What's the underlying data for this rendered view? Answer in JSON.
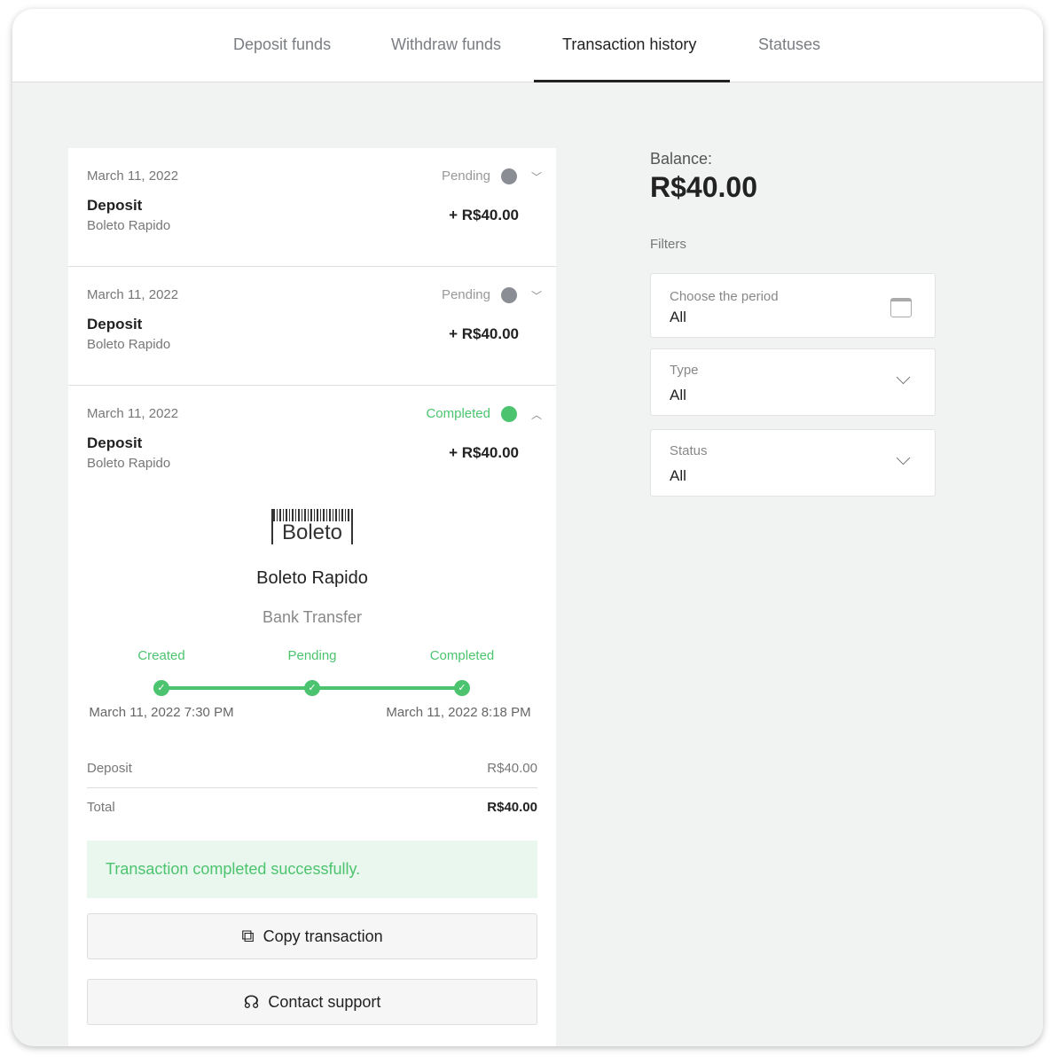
{
  "tabs": [
    {
      "label": "Deposit funds"
    },
    {
      "label": "Withdraw funds"
    },
    {
      "label": "Transaction history"
    },
    {
      "label": "Statuses"
    }
  ],
  "transactions": [
    {
      "date": "March 11, 2022",
      "status": "Pending",
      "type": "Deposit",
      "method": "Boleto Rapido",
      "amount": "+ R$40.00",
      "expanded": false
    },
    {
      "date": "March 11, 2022",
      "status": "Pending",
      "type": "Deposit",
      "method": "Boleto Rapido",
      "amount": "+ R$40.00",
      "expanded": false
    },
    {
      "date": "March 11, 2022",
      "status": "Completed",
      "type": "Deposit",
      "method": "Boleto Rapido",
      "amount": "+ R$40.00",
      "expanded": true
    }
  ],
  "detail": {
    "logo_text": "Boleto",
    "method_name": "Boleto Rapido",
    "method_type": "Bank Transfer",
    "steps": [
      {
        "label": "Created",
        "time": "March 11, 2022 7:30 PM"
      },
      {
        "label": "Pending",
        "time": ""
      },
      {
        "label": "Completed",
        "time": "March 11, 2022 8:18 PM"
      }
    ],
    "summary": [
      {
        "label": "Deposit",
        "value": "R$40.00"
      },
      {
        "label": "Total",
        "value": "R$40.00"
      }
    ],
    "success_message": "Transaction completed successfully.",
    "copy_label": "Copy transaction",
    "support_label": "Contact support"
  },
  "balance": {
    "label": "Balance:",
    "value": "R$40.00"
  },
  "filters": {
    "title": "Filters",
    "items": [
      {
        "label": "Choose the period",
        "value": "All"
      },
      {
        "label": "Type",
        "value": "All"
      },
      {
        "label": "Status",
        "value": "All"
      }
    ]
  },
  "colors": {
    "accent": "#4cc46f",
    "pending": "#8a8d93"
  }
}
